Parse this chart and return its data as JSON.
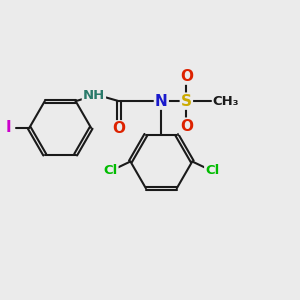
{
  "bg_color": "#ebebeb",
  "bond_color": "#1a1a1a",
  "bond_width": 1.5,
  "atom_colors": {
    "N": "#1a1acc",
    "O": "#dd2200",
    "S": "#ccaa00",
    "Cl": "#00bb00",
    "I": "#cc00cc",
    "NH": "#2a7a6a"
  },
  "font_size": 10,
  "font_size_small": 8.5
}
